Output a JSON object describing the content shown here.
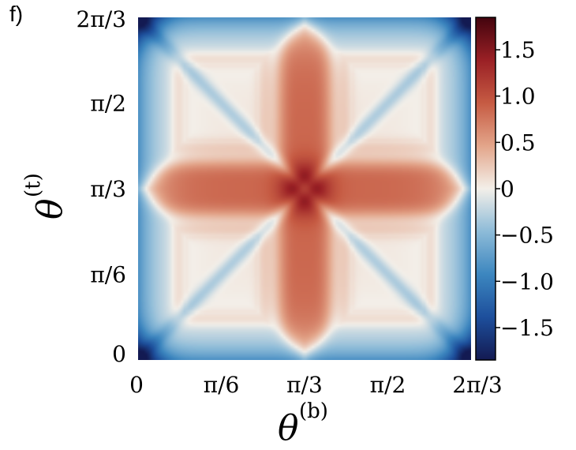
{
  "panel_label": "f)",
  "chart_data": {
    "type": "heatmap",
    "title": "",
    "xlabel": "θ(b)",
    "ylabel": "θ(t)",
    "x_label_main": "θ",
    "x_label_sup": "(b)",
    "y_label_main": "θ",
    "y_label_sup": "(t)",
    "xlim": [
      0,
      2.0944
    ],
    "ylim": [
      0,
      2.0944
    ],
    "x_ticks": [
      {
        "value": 0,
        "label": "0"
      },
      {
        "value": 0.5236,
        "label": "π/6"
      },
      {
        "value": 1.0472,
        "label": "π/3"
      },
      {
        "value": 1.5708,
        "label": "π/2"
      },
      {
        "value": 2.0944,
        "label": "2π/3"
      }
    ],
    "y_ticks": [
      {
        "value": 0,
        "label": "0"
      },
      {
        "value": 0.5236,
        "label": "π/6"
      },
      {
        "value": 1.0472,
        "label": "π/3"
      },
      {
        "value": 1.5708,
        "label": "π/2"
      },
      {
        "value": 2.0944,
        "label": "2π/3"
      }
    ],
    "colorbar": {
      "min": -1.85,
      "max": 1.85,
      "colormap": [
        "#131a52",
        "#1d4f9c",
        "#3c86bf",
        "#8dbbd8",
        "#f3efe9",
        "#e3a58a",
        "#c65b43",
        "#9a2025",
        "#43040e"
      ],
      "ticks": [
        {
          "value": 1.5,
          "label": "1.5"
        },
        {
          "value": 1.0,
          "label": "1.0"
        },
        {
          "value": 0.5,
          "label": "0.5"
        },
        {
          "value": 0,
          "label": "0"
        },
        {
          "value": -0.5,
          "label": "−0.5"
        },
        {
          "value": -1.0,
          "label": "−1.0"
        },
        {
          "value": -1.5,
          "label": "−1.5"
        }
      ]
    },
    "features": {
      "center_peak": 1.85,
      "cross_arm_level": 0.85,
      "corner_min": -1.85,
      "edge_level": -0.85,
      "square_interior_level": 0.05
    }
  }
}
